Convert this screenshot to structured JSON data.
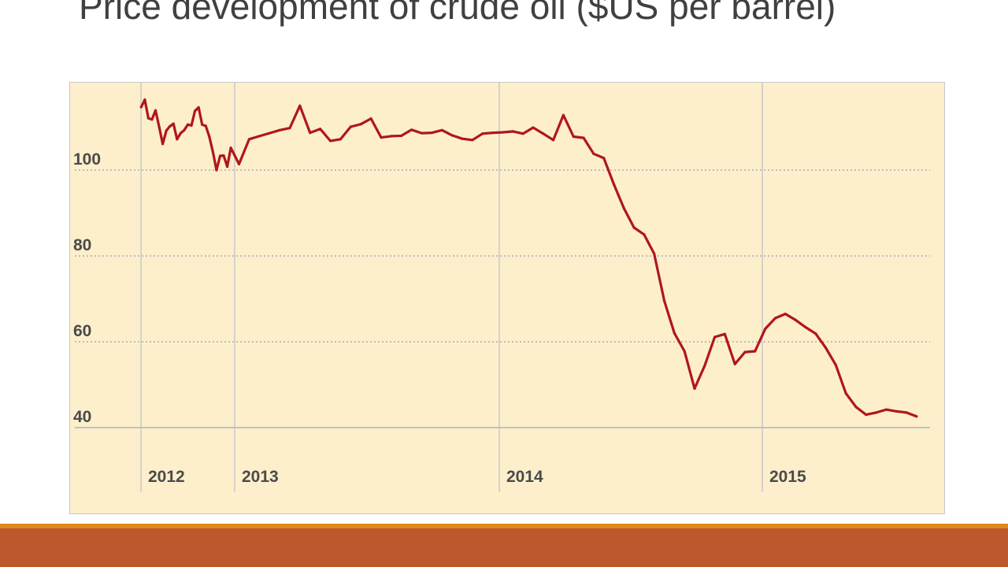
{
  "slide": {
    "title": "Price development of crude oil ($US per barrel)"
  },
  "colors": {
    "plot_background": "#fdefcb",
    "line": "#b0161b",
    "gridline": "#c9c9c9",
    "footer_stripe": "#e0891d",
    "footer_band": "#bc582c"
  },
  "chart_data": {
    "type": "line",
    "title": "",
    "xlabel": "",
    "ylabel": "",
    "ylim": [
      40,
      120
    ],
    "xlim": [
      "2011-09",
      "2015-08"
    ],
    "y_ticks": [
      {
        "value": 40,
        "label": "40"
      },
      {
        "value": 60,
        "label": "60"
      },
      {
        "value": 80,
        "label": "80"
      },
      {
        "value": 100,
        "label": "100"
      }
    ],
    "x_ticks": [
      {
        "x": "2012-01",
        "label": "2012"
      },
      {
        "x": "2013-01",
        "label": "2013"
      },
      {
        "x": "2014-01",
        "label": "2014"
      },
      {
        "x": "2015-01",
        "label": "2015"
      }
    ],
    "grid": "horizontal dotted gridlines, vertical lines at year boundaries",
    "legend": "none",
    "series": [
      {
        "x": [
          "2012-01-02",
          "2012-01-16",
          "2012-01-30",
          "2012-02-13",
          "2012-02-27",
          "2012-03-12",
          "2012-03-26",
          "2012-04-09",
          "2012-04-23",
          "2012-05-07",
          "2012-05-21",
          "2012-06-04",
          "2012-06-18",
          "2012-07-02",
          "2012-07-16",
          "2012-07-30",
          "2012-08-13",
          "2012-08-27",
          "2012-09-10",
          "2012-09-24",
          "2012-10-08",
          "2012-10-22",
          "2012-11-05",
          "2012-11-19",
          "2012-12-03",
          "2012-12-17",
          "2013-01-07",
          "2013-01-21",
          "2013-02-04",
          "2013-02-18",
          "2013-03-04",
          "2013-03-18",
          "2013-04-01",
          "2013-04-15",
          "2013-04-29",
          "2013-05-13",
          "2013-05-27",
          "2013-06-10",
          "2013-06-24",
          "2013-07-08",
          "2013-07-22",
          "2013-08-05",
          "2013-08-19",
          "2013-09-02",
          "2013-09-16",
          "2013-09-30",
          "2013-10-14",
          "2013-10-28",
          "2013-11-11",
          "2013-11-25",
          "2013-12-09",
          "2013-12-23",
          "2014-01-06",
          "2014-01-20",
          "2014-02-03",
          "2014-02-17",
          "2014-03-03",
          "2014-03-17",
          "2014-03-31",
          "2014-04-14",
          "2014-04-28",
          "2014-05-12",
          "2014-05-26",
          "2014-06-09",
          "2014-06-23",
          "2014-07-07",
          "2014-07-21",
          "2014-08-04",
          "2014-08-18",
          "2014-09-01",
          "2014-09-15",
          "2014-09-29",
          "2014-10-13",
          "2014-10-27",
          "2014-11-10",
          "2014-11-24",
          "2014-12-08",
          "2014-12-22",
          "2015-01-05",
          "2015-01-19",
          "2015-02-02",
          "2015-02-16",
          "2015-03-02",
          "2015-03-16",
          "2015-03-30",
          "2015-04-13",
          "2015-04-27",
          "2015-05-11",
          "2015-05-25",
          "2015-06-08",
          "2015-06-22",
          "2015-07-06",
          "2015-07-20",
          "2015-08-03"
        ],
        "values": [
          114.7,
          116.4,
          112.1,
          111.8,
          113.9,
          110.1,
          106.1,
          109.2,
          110.2,
          110.8,
          107.2,
          108.6,
          109.3,
          110.6,
          110.4,
          113.8,
          114.6,
          110.6,
          110.3,
          107.8,
          104.2,
          100.0,
          103.3,
          103.4,
          100.8,
          105.2,
          101.4,
          107.2,
          107.9,
          108.6,
          109.3,
          109.8,
          115.0,
          108.7,
          109.6,
          106.8,
          107.2,
          110.1,
          110.7,
          112.0,
          107.6,
          107.9,
          108.0,
          109.4,
          108.6,
          108.7,
          109.3,
          108.1,
          107.3,
          107.0,
          108.5,
          108.7,
          108.8,
          109.0,
          108.5,
          109.9,
          108.5,
          107.0,
          112.8,
          107.8,
          107.5,
          103.8,
          102.8,
          96.7,
          91.1,
          86.6,
          85.0,
          80.5,
          69.5,
          62.0,
          57.8,
          49.1,
          54.4,
          61.1,
          61.8,
          54.8,
          57.6,
          57.8,
          63.0,
          65.5,
          66.5,
          65.1,
          63.4,
          61.9,
          58.6,
          54.6,
          48.0,
          44.8,
          43.0,
          43.5,
          44.2,
          43.8,
          43.5,
          42.6
        ]
      }
    ]
  }
}
